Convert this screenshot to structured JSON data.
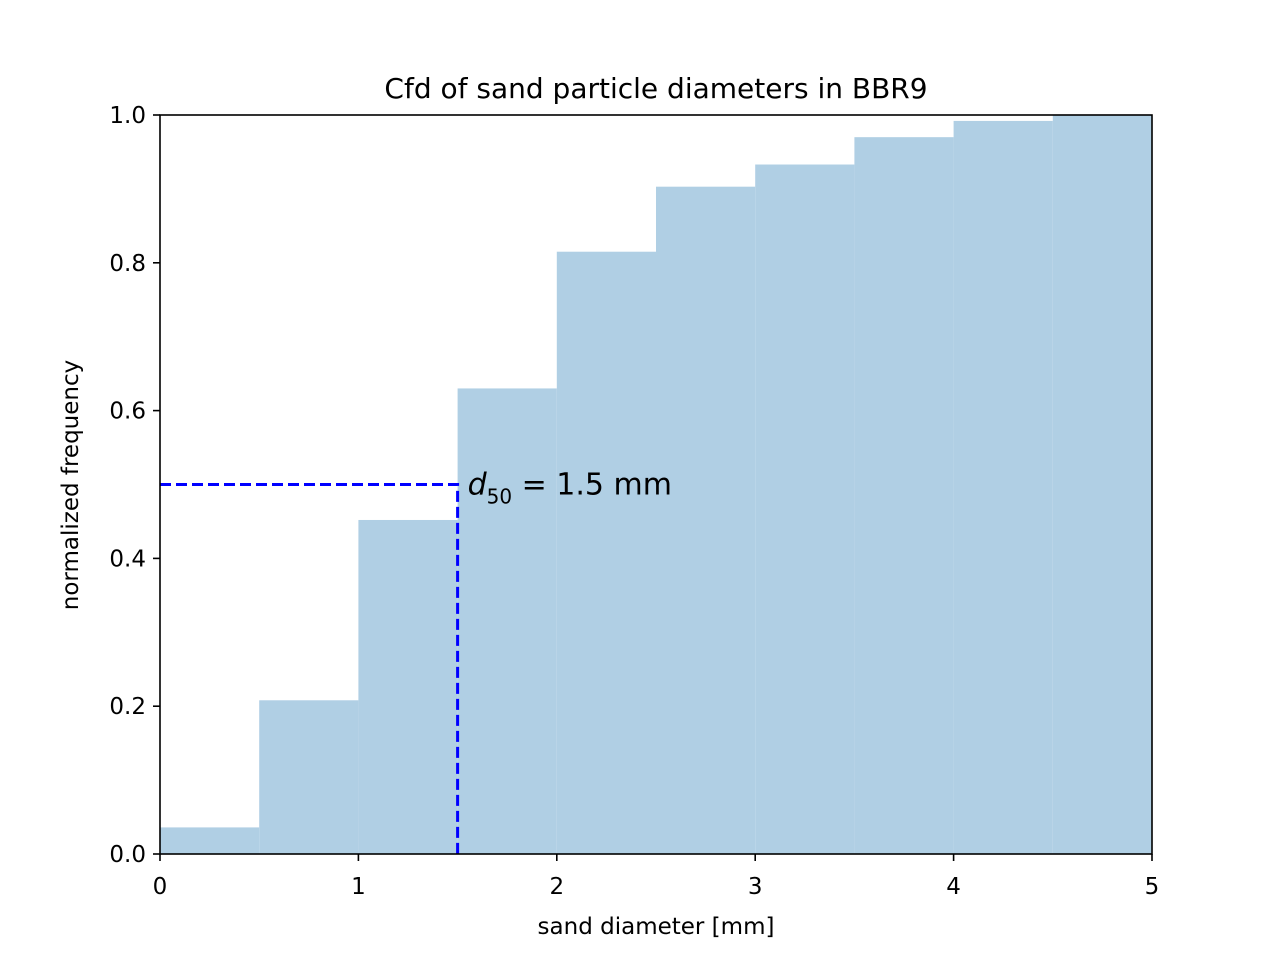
{
  "chart_data": {
    "type": "bar",
    "title": "Cfd of sand particle diameters in BBR9",
    "xlabel": "sand diameter [mm]",
    "ylabel": "normalized frequency",
    "xlim": [
      0,
      5
    ],
    "ylim": [
      0,
      1
    ],
    "xticks": [
      "0",
      "1",
      "2",
      "3",
      "4",
      "5"
    ],
    "yticks": [
      "0.0",
      "0.2",
      "0.4",
      "0.6",
      "0.8",
      "1.0"
    ],
    "bin_width": 0.5,
    "bins": [
      {
        "start": 0.0,
        "end": 0.5,
        "value": 0.036
      },
      {
        "start": 0.5,
        "end": 1.0,
        "value": 0.208
      },
      {
        "start": 1.0,
        "end": 1.5,
        "value": 0.452
      },
      {
        "start": 1.5,
        "end": 2.0,
        "value": 0.63
      },
      {
        "start": 2.0,
        "end": 2.5,
        "value": 0.815
      },
      {
        "start": 2.5,
        "end": 3.0,
        "value": 0.903
      },
      {
        "start": 3.0,
        "end": 3.5,
        "value": 0.933
      },
      {
        "start": 3.5,
        "end": 4.0,
        "value": 0.97
      },
      {
        "start": 4.0,
        "end": 4.5,
        "value": 0.992
      },
      {
        "start": 4.5,
        "end": 5.0,
        "value": 1.0
      }
    ],
    "bar_color": "#b0cfe4",
    "grid": false,
    "reference_line": {
      "x": 1.5,
      "y": 0.5,
      "color": "#0000ff",
      "style": "dashed"
    },
    "annotation": {
      "x": 1.5,
      "y": 0.5,
      "var": "d",
      "sub": "50",
      "text": " = 1.5 mm"
    }
  }
}
